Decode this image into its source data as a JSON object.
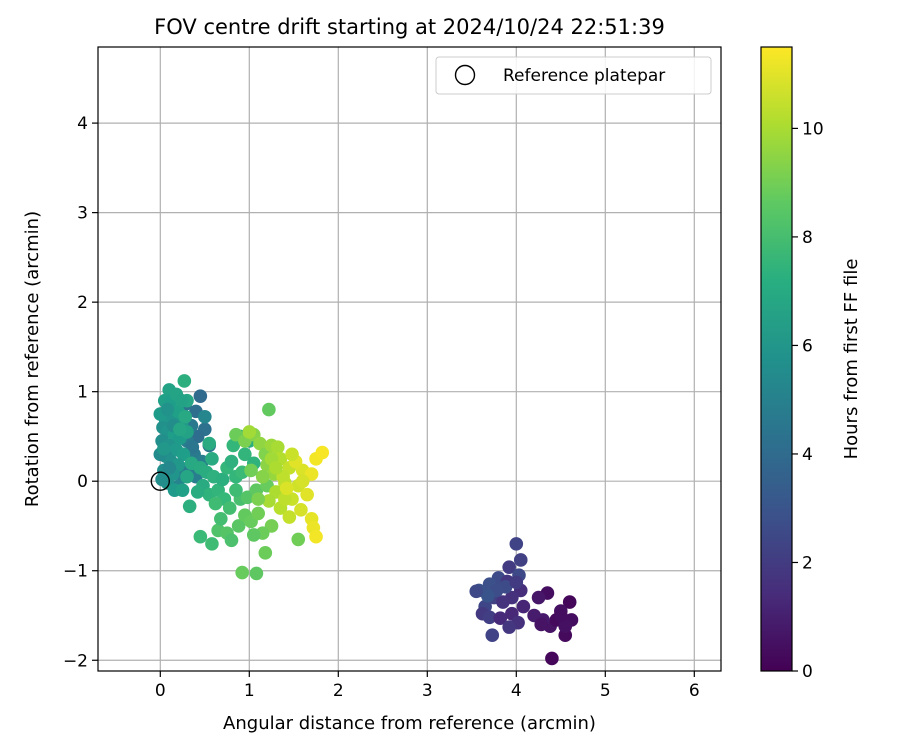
{
  "chart_data": {
    "type": "scatter",
    "title": "FOV centre drift starting at 2024/10/24 22:51:39",
    "xlabel": "Angular distance from reference (arcmin)",
    "ylabel": "Rotation from reference (arcmin)",
    "xlim": [
      -0.7,
      6.3
    ],
    "ylim": [
      -2.12,
      4.85
    ],
    "xticks": [
      0,
      1,
      2,
      3,
      4,
      5,
      6
    ],
    "yticks": [
      -2,
      -1,
      0,
      1,
      2,
      3,
      4
    ],
    "xtick_labels": [
      "0",
      "1",
      "2",
      "3",
      "4",
      "5",
      "6"
    ],
    "ytick_labels": [
      "−2",
      "−1",
      "0",
      "1",
      "2",
      "3",
      "4"
    ],
    "grid": true,
    "legend": {
      "placement": "upper right",
      "entries": [
        "Reference platepar"
      ]
    },
    "reference_point": {
      "x": 0,
      "y": 0,
      "label": "Reference platepar"
    },
    "colorbar": {
      "label": "Hours from first FF file",
      "colormap": "viridis",
      "range": [
        0,
        11.5
      ],
      "ticks": [
        0,
        2,
        4,
        6,
        8,
        10
      ],
      "tick_labels": [
        "0",
        "2",
        "4",
        "6",
        "8",
        "10"
      ]
    },
    "points": [
      {
        "x": 4.4,
        "y": -1.98,
        "t": 0.2
      },
      {
        "x": 4.55,
        "y": -1.72,
        "t": 0.3
      },
      {
        "x": 4.62,
        "y": -1.55,
        "t": 0.4
      },
      {
        "x": 4.6,
        "y": -1.35,
        "t": 0.2
      },
      {
        "x": 4.5,
        "y": -1.45,
        "t": 0.5
      },
      {
        "x": 4.38,
        "y": -1.62,
        "t": 0.6
      },
      {
        "x": 4.35,
        "y": -1.25,
        "t": 0.4
      },
      {
        "x": 4.25,
        "y": -1.3,
        "t": 0.7
      },
      {
        "x": 4.45,
        "y": -1.55,
        "t": 0.3
      },
      {
        "x": 4.3,
        "y": -1.55,
        "t": 0.8
      },
      {
        "x": 4.2,
        "y": -1.5,
        "t": 0.9
      },
      {
        "x": 4.55,
        "y": -1.62,
        "t": 0.5
      },
      {
        "x": 4.28,
        "y": -1.6,
        "t": 0.6
      },
      {
        "x": 4.5,
        "y": -1.5,
        "t": 0.4
      },
      {
        "x": 4.0,
        "y": -0.7,
        "t": 2.3
      },
      {
        "x": 4.05,
        "y": -0.88,
        "t": 2.2
      },
      {
        "x": 3.92,
        "y": -0.96,
        "t": 2.0
      },
      {
        "x": 4.03,
        "y": -1.05,
        "t": 2.5
      },
      {
        "x": 3.8,
        "y": -1.08,
        "t": 2.6
      },
      {
        "x": 3.7,
        "y": -1.15,
        "t": 2.8
      },
      {
        "x": 3.58,
        "y": -1.22,
        "t": 2.9
      },
      {
        "x": 3.9,
        "y": -1.12,
        "t": 1.8
      },
      {
        "x": 4.05,
        "y": -1.22,
        "t": 1.5
      },
      {
        "x": 3.95,
        "y": -1.3,
        "t": 1.6
      },
      {
        "x": 3.75,
        "y": -1.3,
        "t": 2.2
      },
      {
        "x": 3.85,
        "y": -1.35,
        "t": 1.7
      },
      {
        "x": 3.65,
        "y": -1.4,
        "t": 2.4
      },
      {
        "x": 3.62,
        "y": -1.48,
        "t": 1.9
      },
      {
        "x": 3.7,
        "y": -1.52,
        "t": 2.1
      },
      {
        "x": 3.82,
        "y": -1.53,
        "t": 1.4
      },
      {
        "x": 3.95,
        "y": -1.48,
        "t": 1.3
      },
      {
        "x": 4.08,
        "y": -1.4,
        "t": 1.2
      },
      {
        "x": 4.02,
        "y": -1.58,
        "t": 1.6
      },
      {
        "x": 3.92,
        "y": -1.63,
        "t": 1.8
      },
      {
        "x": 3.73,
        "y": -1.72,
        "t": 2.3
      },
      {
        "x": 3.88,
        "y": -1.18,
        "t": 2.6
      },
      {
        "x": 3.78,
        "y": -1.22,
        "t": 2.7
      },
      {
        "x": 4.0,
        "y": -1.13,
        "t": 2.0
      },
      {
        "x": 3.68,
        "y": -1.28,
        "t": 3.0
      },
      {
        "x": 3.55,
        "y": -1.23,
        "t": 2.5
      },
      {
        "x": 0.45,
        "y": 0.95,
        "t": 4.0
      },
      {
        "x": 0.4,
        "y": 0.78,
        "t": 4.2
      },
      {
        "x": 0.5,
        "y": 0.58,
        "t": 4.3
      },
      {
        "x": 0.42,
        "y": 0.5,
        "t": 4.1
      },
      {
        "x": 0.55,
        "y": 0.4,
        "t": 4.5
      },
      {
        "x": 0.35,
        "y": 0.62,
        "t": 4.6
      },
      {
        "x": 0.3,
        "y": 0.45,
        "t": 4.8
      },
      {
        "x": 0.28,
        "y": 0.86,
        "t": 4.4
      },
      {
        "x": 0.38,
        "y": 0.3,
        "t": 4.7
      },
      {
        "x": 0.47,
        "y": 0.22,
        "t": 4.9
      },
      {
        "x": 0.32,
        "y": 0.15,
        "t": 4.7
      },
      {
        "x": 0.25,
        "y": 0.05,
        "t": 5.0
      },
      {
        "x": 0.4,
        "y": 0.05,
        "t": 4.9
      },
      {
        "x": 0.2,
        "y": -0.06,
        "t": 5.2
      },
      {
        "x": 0.5,
        "y": 0.72,
        "t": 5.3
      },
      {
        "x": 0.36,
        "y": 0.38,
        "t": 4.5
      },
      {
        "x": 0.05,
        "y": 0.9,
        "t": 6.5
      },
      {
        "x": 0.1,
        "y": 1.02,
        "t": 6.6
      },
      {
        "x": 0.12,
        "y": 0.9,
        "t": 6.4
      },
      {
        "x": 0.18,
        "y": 0.97,
        "t": 6.7
      },
      {
        "x": 0.27,
        "y": 1.12,
        "t": 7.2
      },
      {
        "x": 0.3,
        "y": 0.9,
        "t": 6.8
      },
      {
        "x": 0.0,
        "y": 0.75,
        "t": 6.3
      },
      {
        "x": 0.06,
        "y": 0.68,
        "t": 6.2
      },
      {
        "x": 0.14,
        "y": 0.72,
        "t": 6.0
      },
      {
        "x": 0.2,
        "y": 0.78,
        "t": 6.5
      },
      {
        "x": 0.24,
        "y": 0.65,
        "t": 6.1
      },
      {
        "x": 0.03,
        "y": 0.6,
        "t": 5.8
      },
      {
        "x": 0.08,
        "y": 0.55,
        "t": 6.0
      },
      {
        "x": 0.16,
        "y": 0.52,
        "t": 6.4
      },
      {
        "x": 0.22,
        "y": 0.48,
        "t": 6.3
      },
      {
        "x": 0.3,
        "y": 0.55,
        "t": 6.6
      },
      {
        "x": 0.02,
        "y": 0.45,
        "t": 5.7
      },
      {
        "x": 0.1,
        "y": 0.4,
        "t": 5.9
      },
      {
        "x": 0.18,
        "y": 0.35,
        "t": 6.2
      },
      {
        "x": 0.26,
        "y": 0.3,
        "t": 6.4
      },
      {
        "x": 0.06,
        "y": 0.28,
        "t": 5.6
      },
      {
        "x": 0.12,
        "y": 0.22,
        "t": 5.8
      },
      {
        "x": 0.2,
        "y": 0.18,
        "t": 6.1
      },
      {
        "x": 0.0,
        "y": 0.3,
        "t": 5.5
      },
      {
        "x": 0.04,
        "y": 0.12,
        "t": 5.7
      },
      {
        "x": 0.14,
        "y": 0.08,
        "t": 6.0
      },
      {
        "x": 0.08,
        "y": -0.02,
        "t": 5.9
      },
      {
        "x": 0.02,
        "y": 0.02,
        "t": 5.6
      },
      {
        "x": 0.16,
        "y": -0.1,
        "t": 6.2
      },
      {
        "x": 0.25,
        "y": -0.1,
        "t": 6.5
      },
      {
        "x": 0.3,
        "y": 0.05,
        "t": 6.8
      },
      {
        "x": 0.35,
        "y": 0.2,
        "t": 6.9
      },
      {
        "x": 0.33,
        "y": -0.28,
        "t": 7.2
      },
      {
        "x": 0.08,
        "y": 0.8,
        "t": 5.9
      },
      {
        "x": 0.28,
        "y": 0.72,
        "t": 6.9
      },
      {
        "x": 0.24,
        "y": 0.9,
        "t": 6.6
      },
      {
        "x": 0.15,
        "y": 0.62,
        "t": 5.6
      },
      {
        "x": 0.1,
        "y": 0.15,
        "t": 5.4
      },
      {
        "x": 0.22,
        "y": 0.58,
        "t": 6.8
      },
      {
        "x": 0.04,
        "y": 0.36,
        "t": 6.1
      },
      {
        "x": 0.45,
        "y": 0.15,
        "t": 7.0
      },
      {
        "x": 0.52,
        "y": 0.1,
        "t": 7.1
      },
      {
        "x": 0.6,
        "y": 0.05,
        "t": 7.3
      },
      {
        "x": 0.48,
        "y": -0.05,
        "t": 7.0
      },
      {
        "x": 0.55,
        "y": -0.15,
        "t": 7.4
      },
      {
        "x": 0.65,
        "y": -0.1,
        "t": 7.5
      },
      {
        "x": 0.7,
        "y": 0.02,
        "t": 7.2
      },
      {
        "x": 0.42,
        "y": -0.12,
        "t": 7.1
      },
      {
        "x": 0.75,
        "y": 0.15,
        "t": 7.6
      },
      {
        "x": 0.8,
        "y": 0.22,
        "t": 7.3
      },
      {
        "x": 0.85,
        "y": 0.05,
        "t": 7.6
      },
      {
        "x": 0.92,
        "y": 0.1,
        "t": 7.8
      },
      {
        "x": 0.58,
        "y": 0.25,
        "t": 7.0
      },
      {
        "x": 0.72,
        "y": -0.2,
        "t": 7.7
      },
      {
        "x": 0.62,
        "y": -0.25,
        "t": 7.9
      },
      {
        "x": 0.78,
        "y": -0.3,
        "t": 8.0
      },
      {
        "x": 0.9,
        "y": -0.2,
        "t": 8.1
      },
      {
        "x": 0.85,
        "y": -0.1,
        "t": 7.9
      },
      {
        "x": 0.95,
        "y": 0.3,
        "t": 7.5
      },
      {
        "x": 1.05,
        "y": 0.2,
        "t": 7.4
      },
      {
        "x": 1.0,
        "y": 0.45,
        "t": 7.2
      },
      {
        "x": 0.9,
        "y": 0.5,
        "t": 7.3
      },
      {
        "x": 0.82,
        "y": 0.4,
        "t": 7.6
      },
      {
        "x": 0.55,
        "y": 0.42,
        "t": 7.0
      },
      {
        "x": 0.45,
        "y": -0.62,
        "t": 7.8
      },
      {
        "x": 0.58,
        "y": -0.7,
        "t": 7.9
      },
      {
        "x": 0.65,
        "y": -0.55,
        "t": 8.3
      },
      {
        "x": 0.75,
        "y": -0.58,
        "t": 8.4
      },
      {
        "x": 0.8,
        "y": -0.66,
        "t": 8.2
      },
      {
        "x": 0.88,
        "y": -0.5,
        "t": 8.5
      },
      {
        "x": 0.92,
        "y": -1.02,
        "t": 8.8
      },
      {
        "x": 1.08,
        "y": -1.03,
        "t": 8.6
      },
      {
        "x": 1.18,
        "y": -0.8,
        "t": 8.9
      },
      {
        "x": 0.95,
        "y": -0.38,
        "t": 8.7
      },
      {
        "x": 1.02,
        "y": -0.45,
        "t": 8.8
      },
      {
        "x": 1.1,
        "y": -0.36,
        "t": 9.0
      },
      {
        "x": 1.25,
        "y": -0.5,
        "t": 9.1
      },
      {
        "x": 1.15,
        "y": -0.58,
        "t": 8.9
      },
      {
        "x": 1.05,
        "y": -0.6,
        "t": 8.6
      },
      {
        "x": 1.22,
        "y": 0.8,
        "t": 8.7
      },
      {
        "x": 1.55,
        "y": -0.65,
        "t": 9.0
      },
      {
        "x": 0.98,
        "y": -0.18,
        "t": 8.4
      },
      {
        "x": 1.08,
        "y": -0.1,
        "t": 8.6
      },
      {
        "x": 1.2,
        "y": -0.05,
        "t": 8.8
      },
      {
        "x": 0.68,
        "y": -0.42,
        "t": 8.0
      },
      {
        "x": 0.85,
        "y": 0.52,
        "t": 8.9
      },
      {
        "x": 0.95,
        "y": 0.45,
        "t": 9.2
      },
      {
        "x": 1.05,
        "y": 0.52,
        "t": 9.4
      },
      {
        "x": 1.12,
        "y": 0.42,
        "t": 9.6
      },
      {
        "x": 1.18,
        "y": 0.3,
        "t": 9.3
      },
      {
        "x": 1.25,
        "y": 0.4,
        "t": 9.8
      },
      {
        "x": 1.32,
        "y": 0.38,
        "t": 10.0
      },
      {
        "x": 1.0,
        "y": 0.55,
        "t": 9.9
      },
      {
        "x": 1.2,
        "y": 0.18,
        "t": 9.5
      },
      {
        "x": 1.28,
        "y": 0.08,
        "t": 9.7
      },
      {
        "x": 1.35,
        "y": 0.25,
        "t": 10.2
      },
      {
        "x": 1.45,
        "y": 0.15,
        "t": 10.5
      },
      {
        "x": 1.4,
        "y": -0.02,
        "t": 10.4
      },
      {
        "x": 1.3,
        "y": -0.12,
        "t": 10.1
      },
      {
        "x": 1.22,
        "y": -0.22,
        "t": 10.0
      },
      {
        "x": 1.35,
        "y": -0.3,
        "t": 10.3
      },
      {
        "x": 1.48,
        "y": -0.2,
        "t": 10.6
      },
      {
        "x": 1.55,
        "y": -0.05,
        "t": 10.7
      },
      {
        "x": 1.6,
        "y": 0.12,
        "t": 10.9
      },
      {
        "x": 1.65,
        "y": -0.15,
        "t": 11.0
      },
      {
        "x": 1.58,
        "y": -0.32,
        "t": 10.8
      },
      {
        "x": 1.45,
        "y": -0.4,
        "t": 10.5
      },
      {
        "x": 1.38,
        "y": 0.05,
        "t": 10.4
      },
      {
        "x": 1.52,
        "y": 0.22,
        "t": 11.0
      },
      {
        "x": 1.7,
        "y": 0.08,
        "t": 11.2
      },
      {
        "x": 1.75,
        "y": 0.25,
        "t": 11.3
      },
      {
        "x": 1.82,
        "y": 0.32,
        "t": 11.4
      },
      {
        "x": 1.7,
        "y": -0.42,
        "t": 11.1
      },
      {
        "x": 1.72,
        "y": -0.52,
        "t": 11.2
      },
      {
        "x": 1.75,
        "y": -0.62,
        "t": 11.3
      },
      {
        "x": 1.6,
        "y": 0.0,
        "t": 10.8
      },
      {
        "x": 1.15,
        "y": 0.05,
        "t": 9.4
      },
      {
        "x": 1.4,
        "y": -0.2,
        "t": 10.4
      },
      {
        "x": 1.1,
        "y": -0.2,
        "t": 9.2
      },
      {
        "x": 1.25,
        "y": 0.25,
        "t": 9.9
      },
      {
        "x": 1.48,
        "y": 0.3,
        "t": 10.6
      },
      {
        "x": 1.3,
        "y": 0.15,
        "t": 10.1
      },
      {
        "x": 1.02,
        "y": 0.12,
        "t": 9.0
      },
      {
        "x": 1.42,
        "y": -0.08,
        "t": 10.9
      }
    ]
  }
}
